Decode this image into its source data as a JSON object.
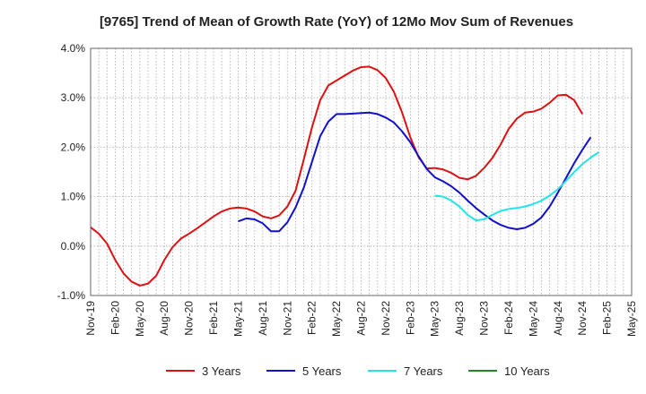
{
  "chart_data": {
    "type": "line",
    "title": "[9765]  Trend of Mean of Growth Rate (YoY) of 12Mo Mov Sum of Revenues",
    "xlabel": "",
    "ylabel": "",
    "ylim": [
      -1.0,
      4.0
    ],
    "yticks": [
      -1.0,
      0.0,
      1.0,
      2.0,
      3.0,
      4.0
    ],
    "ytick_labels": [
      "-1.0%",
      "0.0%",
      "1.0%",
      "2.0%",
      "3.0%",
      "4.0%"
    ],
    "x_start": "Nov-19",
    "num_months": 67,
    "xtick_labels": [
      "Nov-19",
      "Feb-20",
      "May-20",
      "Aug-20",
      "Nov-20",
      "Feb-21",
      "May-21",
      "Aug-21",
      "Nov-21",
      "Feb-22",
      "May-22",
      "Aug-22",
      "Nov-22",
      "Feb-23",
      "May-23",
      "Aug-23",
      "Nov-23",
      "Feb-24",
      "May-24",
      "Aug-24",
      "Nov-24",
      "Feb-25",
      "May-25"
    ],
    "grid": true,
    "legend_position": "bottom",
    "series": [
      {
        "name": "3 Years",
        "color": "#dd1111",
        "start_index": 0,
        "values": [
          0.38,
          0.25,
          0.05,
          -0.28,
          -0.55,
          -0.72,
          -0.8,
          -0.76,
          -0.6,
          -0.28,
          -0.02,
          0.15,
          0.25,
          0.36,
          0.48,
          0.6,
          0.7,
          0.76,
          0.78,
          0.76,
          0.7,
          0.6,
          0.56,
          0.62,
          0.8,
          1.12,
          1.75,
          2.4,
          2.95,
          3.25,
          3.35,
          3.45,
          3.55,
          3.62,
          3.63,
          3.56,
          3.4,
          3.12,
          2.7,
          2.2,
          1.8,
          1.57,
          1.58,
          1.55,
          1.48,
          1.38,
          1.35,
          1.42,
          1.58,
          1.78,
          2.05,
          2.37,
          2.58,
          2.7,
          2.72,
          2.78,
          2.9,
          3.05,
          3.06,
          2.95,
          2.67
        ]
      },
      {
        "name": "5 Years",
        "color": "#1111cc",
        "start_index": 18,
        "values": [
          0.5,
          0.56,
          0.54,
          0.46,
          0.3,
          0.3,
          0.48,
          0.78,
          1.18,
          1.7,
          2.22,
          2.52,
          2.67,
          2.67,
          2.68,
          2.69,
          2.7,
          2.67,
          2.6,
          2.5,
          2.32,
          2.1,
          1.82,
          1.56,
          1.39,
          1.31,
          1.21,
          1.08,
          0.92,
          0.77,
          0.64,
          0.52,
          0.43,
          0.37,
          0.34,
          0.37,
          0.45,
          0.58,
          0.8,
          1.08,
          1.38,
          1.68,
          1.95,
          2.2
        ]
      },
      {
        "name": "7 Years",
        "color": "#22e5e5",
        "start_index": 42,
        "values": [
          1.02,
          1.0,
          0.92,
          0.8,
          0.63,
          0.52,
          0.54,
          0.63,
          0.71,
          0.75,
          0.77,
          0.8,
          0.85,
          0.92,
          1.02,
          1.15,
          1.32,
          1.5,
          1.66,
          1.79,
          1.9
        ]
      },
      {
        "name": "10 Years",
        "color": "#228822",
        "start_index": 0,
        "values": []
      }
    ]
  }
}
